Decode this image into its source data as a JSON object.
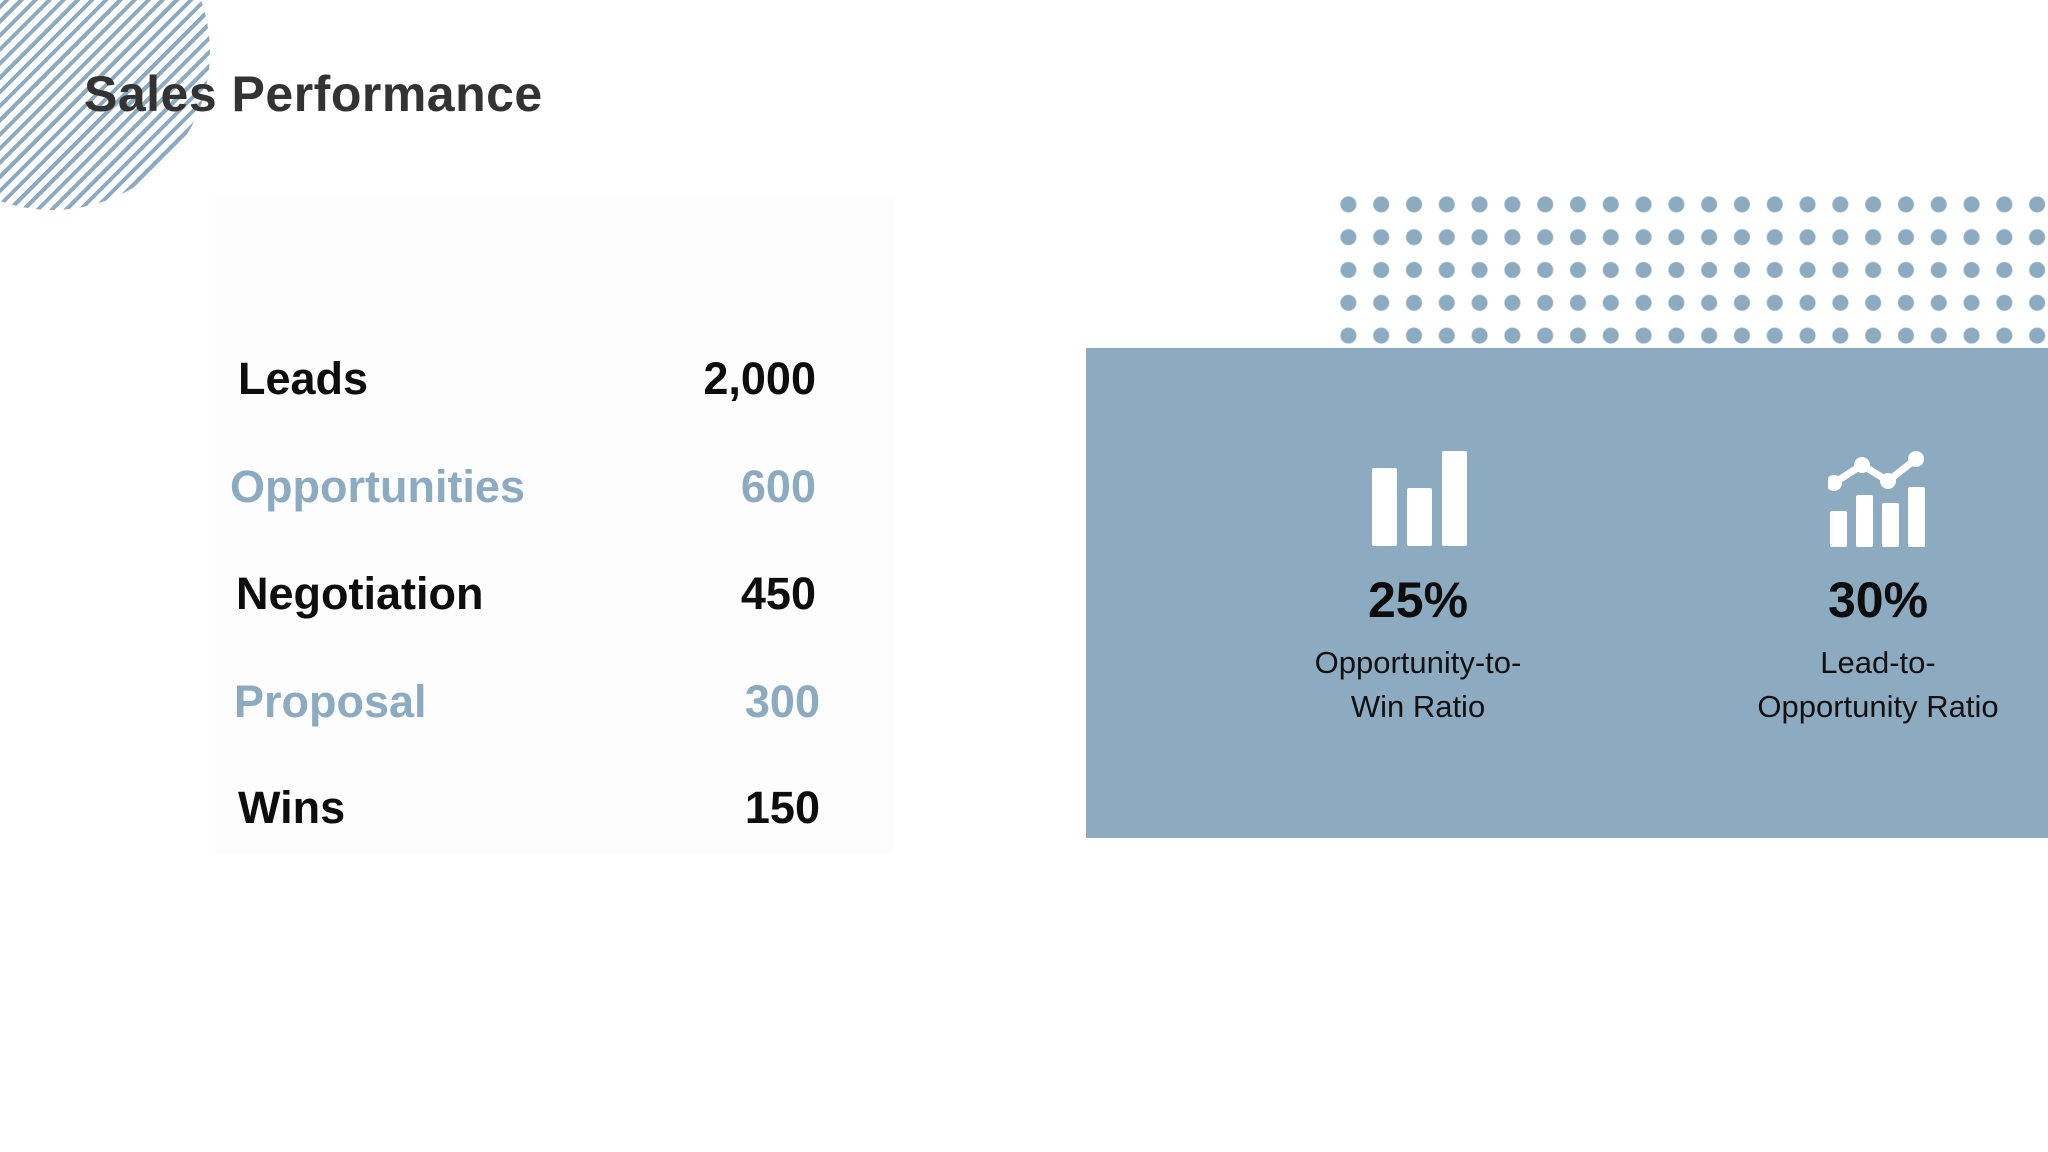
{
  "title": "Sales Performance",
  "colors": {
    "accent": "#8dabc0",
    "text_dark": "#0d0d0d",
    "title": "#333333",
    "background": "#ffffff"
  },
  "metrics": [
    {
      "label": "Leads",
      "value": "2,000",
      "tone": "dark"
    },
    {
      "label": "Opportunities",
      "value": "600",
      "tone": "light"
    },
    {
      "label": "Negotiation",
      "value": "450",
      "tone": "dark"
    },
    {
      "label": "Proposal",
      "value": "300",
      "tone": "light"
    },
    {
      "label": "Wins",
      "value": "150",
      "tone": "dark"
    }
  ],
  "kpis": [
    {
      "icon": "bar-chart-icon",
      "value": "25%",
      "caption_line1": "Opportunity-to-",
      "caption_line2": "Win Ratio"
    },
    {
      "icon": "growth-chart-icon",
      "value": "30%",
      "caption_line1": "Lead-to-",
      "caption_line2": "Opportunity Ratio"
    }
  ]
}
